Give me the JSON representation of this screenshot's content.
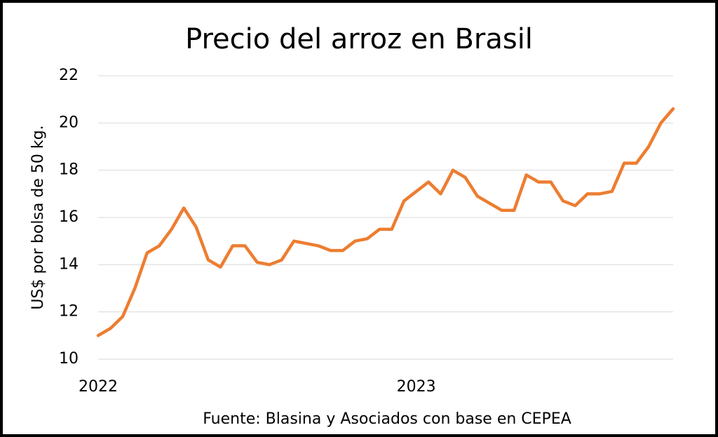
{
  "chart_data": {
    "type": "line",
    "title": "Precio del arroz en Brasil",
    "y_label": "US$ por bolsa de 50 kg.",
    "source": "Fuente: Blasina y Asociados con base en CEPEA",
    "categories": [
      "2022",
      null,
      null,
      null,
      null,
      null,
      null,
      null,
      null,
      null,
      null,
      null,
      null,
      null,
      null,
      null,
      null,
      null,
      null,
      null,
      null,
      null,
      null,
      null,
      null,
      null,
      "2023",
      null,
      null,
      null,
      null,
      null,
      null,
      null,
      null,
      null,
      null,
      null,
      null,
      null,
      null,
      null,
      null,
      null,
      null,
      null,
      null,
      null
    ],
    "series": [
      {
        "name": "Precio",
        "color": "#ed7d31",
        "values": [
          11.0,
          11.3,
          11.8,
          13.0,
          14.5,
          14.8,
          15.5,
          16.4,
          15.6,
          14.2,
          13.9,
          14.8,
          14.8,
          14.1,
          14.0,
          14.2,
          15.0,
          14.9,
          14.8,
          14.6,
          14.6,
          15.0,
          15.1,
          15.5,
          15.5,
          16.7,
          17.1,
          17.5,
          17.0,
          18.0,
          17.7,
          16.9,
          16.6,
          16.3,
          16.3,
          17.8,
          17.5,
          17.5,
          16.7,
          16.5,
          17.0,
          17.0,
          17.1,
          18.3,
          18.3,
          19.0,
          20.0,
          20.6
        ]
      }
    ],
    "ylim": [
      10,
      22
    ],
    "yticks": [
      10,
      12,
      14,
      16,
      18,
      20,
      22
    ],
    "grid": true
  }
}
